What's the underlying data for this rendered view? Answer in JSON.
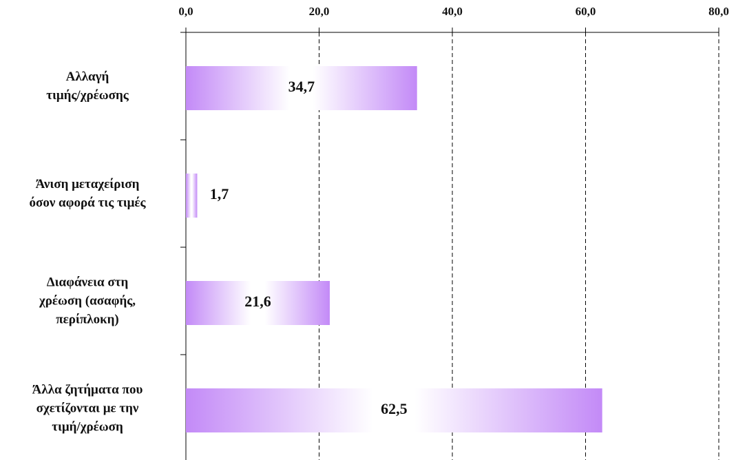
{
  "chart_data": {
    "type": "barh",
    "categories": [
      "Αλλαγή\nτιμής/χρέωσης",
      "Άνιση μεταχείριση\nόσον αφορά τις τιμές",
      "Διαφάνεια στη\nχρέωση (ασαφής,\nπερίπλοκη)",
      "Άλλα ζητήματα που\nσχετίζονται με την\nτιμή/χρέωση"
    ],
    "values": [
      34.7,
      1.7,
      21.6,
      62.5
    ],
    "value_labels": [
      "34,7",
      "1,7",
      "21,6",
      "62,5"
    ],
    "color": "#c38af7",
    "xlim": [
      0,
      80
    ],
    "xticks": [
      {
        "value": 0,
        "label": "0,0"
      },
      {
        "value": 20,
        "label": "20,0"
      },
      {
        "value": 40,
        "label": "40,0"
      },
      {
        "value": 60,
        "label": "60,0"
      },
      {
        "value": 80,
        "label": "80,0"
      }
    ],
    "grid": true
  }
}
